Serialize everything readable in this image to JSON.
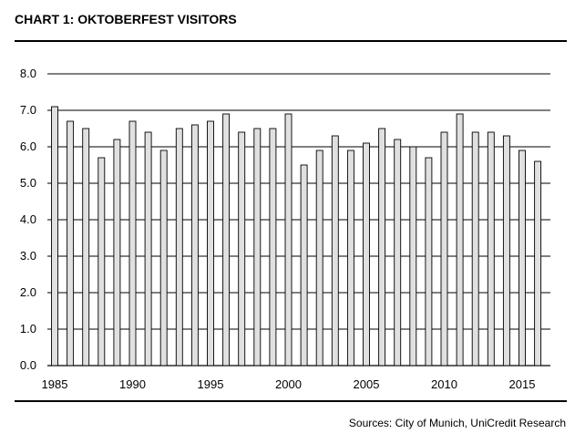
{
  "title": "CHART 1: OKTOBERFEST VISITORS",
  "source": "Sources: City of Munich, UniCredit Research",
  "chart_data": {
    "type": "bar",
    "title": "CHART 1: OKTOBERFEST VISITORS",
    "xlabel": "",
    "ylabel": "",
    "ylim": [
      0,
      8
    ],
    "yticks": [
      "0.0",
      "1.0",
      "2.0",
      "3.0",
      "4.0",
      "5.0",
      "6.0",
      "7.0",
      "8.0"
    ],
    "xtick_labels": [
      "1985",
      "1990",
      "1995",
      "2000",
      "2005",
      "2010",
      "2015"
    ],
    "grid": "horizontal",
    "bar_color": "#e0e0e0",
    "categories": [
      "1985",
      "1986",
      "1987",
      "1988",
      "1989",
      "1990",
      "1991",
      "1992",
      "1993",
      "1994",
      "1995",
      "1996",
      "1997",
      "1998",
      "1999",
      "2000",
      "2001",
      "2002",
      "2003",
      "2004",
      "2005",
      "2006",
      "2007",
      "2008",
      "2009",
      "2010",
      "2011",
      "2012",
      "2013",
      "2014",
      "2015",
      "2016"
    ],
    "values": [
      7.1,
      6.7,
      6.5,
      5.7,
      6.2,
      6.7,
      6.4,
      5.9,
      6.5,
      6.6,
      6.7,
      6.9,
      6.4,
      6.5,
      6.5,
      6.9,
      5.5,
      5.9,
      6.3,
      5.9,
      6.1,
      6.5,
      6.2,
      6.0,
      5.7,
      6.4,
      6.9,
      6.4,
      6.4,
      6.3,
      5.9,
      5.6
    ]
  }
}
